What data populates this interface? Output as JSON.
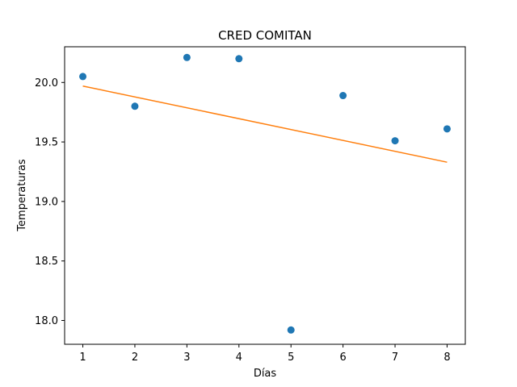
{
  "chart_data": {
    "type": "scatter",
    "title": "CRED COMITAN",
    "xlabel": "Días",
    "ylabel": "Temperaturas",
    "xlim": [
      0.65,
      8.35
    ],
    "ylim": [
      17.8,
      20.3
    ],
    "xticks": [
      1,
      2,
      3,
      4,
      5,
      6,
      7,
      8
    ],
    "yticks": [
      18.0,
      18.5,
      19.0,
      19.5,
      20.0
    ],
    "ytick_labels": [
      "18.0",
      "18.5",
      "19.0",
      "19.5",
      "20.0"
    ],
    "grid": false,
    "series": [
      {
        "kind": "scatter",
        "color": "#1f77b4",
        "x": [
          1,
          2,
          3,
          4,
          5,
          6,
          7,
          8
        ],
        "y": [
          20.05,
          19.8,
          20.21,
          20.2,
          17.92,
          19.89,
          19.51,
          19.61
        ]
      },
      {
        "kind": "line",
        "color": "#ff7f0e",
        "x": [
          1,
          8
        ],
        "y": [
          19.97,
          19.33
        ]
      }
    ]
  }
}
